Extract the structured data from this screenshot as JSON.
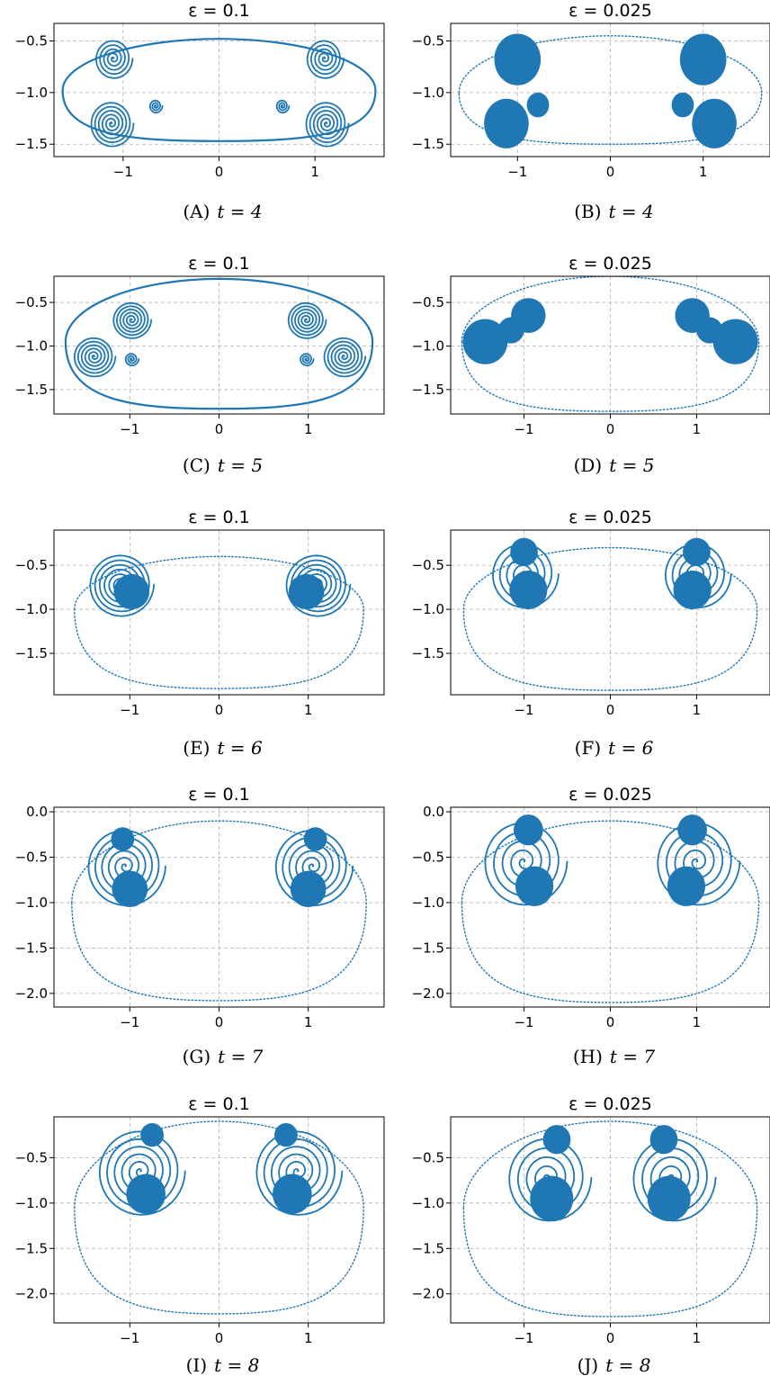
{
  "colors": {
    "series": "#1f77b4",
    "grid": "#b0b0b0",
    "axes": "#000000"
  },
  "chart_data": [
    {
      "type": "scatter",
      "title": "ε = 0.1",
      "caption_prefix": "(A)",
      "caption_text": "t = 4",
      "xlim": [
        -1.72,
        1.72
      ],
      "ylim": [
        -1.62,
        -0.33
      ],
      "xticks": [
        -1,
        0,
        1
      ],
      "xticklabels": [
        "−1",
        "0",
        "1"
      ],
      "yticks": [
        -0.5,
        -1.0,
        -1.5
      ],
      "yticklabels": [
        "−0.5",
        "−1.0",
        "−1.5"
      ],
      "grid": true,
      "legend": "none",
      "curves": [
        {
          "name": "",
          "kind": "loop",
          "cx": 0,
          "cy": -0.98,
          "rx": 1.63,
          "ry": 0.5,
          "sag": -1.47
        },
        {
          "kind": "spiral",
          "cx": -1.1,
          "cy": -0.67,
          "r": 0.2,
          "turns": 5
        },
        {
          "kind": "spiral",
          "cx": 1.1,
          "cy": -0.67,
          "r": 0.2,
          "turns": 5
        },
        {
          "kind": "spiral",
          "cx": -1.12,
          "cy": -1.3,
          "r": 0.23,
          "turns": 6
        },
        {
          "kind": "spiral",
          "cx": 1.12,
          "cy": -1.3,
          "r": 0.23,
          "turns": 6
        },
        {
          "kind": "spiral",
          "cx": -0.66,
          "cy": -1.13,
          "r": 0.07,
          "turns": 3
        },
        {
          "kind": "spiral",
          "cx": 0.66,
          "cy": -1.13,
          "r": 0.07,
          "turns": 3
        }
      ]
    },
    {
      "type": "scatter",
      "title": "ε = 0.025",
      "caption_prefix": "(B)",
      "caption_text": "t = 4",
      "xlim": [
        -1.72,
        1.72
      ],
      "ylim": [
        -1.62,
        -0.33
      ],
      "xticks": [
        -1,
        0,
        1
      ],
      "xticklabels": [
        "−1",
        "0",
        "1"
      ],
      "yticks": [
        -0.5,
        -1.0,
        -1.5
      ],
      "yticklabels": [
        "−0.5",
        "−1.0",
        "−1.5"
      ],
      "grid": true,
      "legend": "none",
      "curves": [
        {
          "kind": "loop-dotted",
          "cx": 0,
          "cy": -1.0,
          "rx": 1.63,
          "ry": 0.55,
          "sag": -1.5
        },
        {
          "kind": "blob",
          "cx": -1.0,
          "cy": -0.68,
          "r": 0.25
        },
        {
          "kind": "blob",
          "cx": 1.0,
          "cy": -0.68,
          "r": 0.25
        },
        {
          "kind": "blob",
          "cx": -1.12,
          "cy": -1.3,
          "r": 0.24
        },
        {
          "kind": "blob",
          "cx": 1.12,
          "cy": -1.3,
          "r": 0.24
        },
        {
          "kind": "blob",
          "cx": -0.78,
          "cy": -1.12,
          "r": 0.12
        },
        {
          "kind": "blob",
          "cx": 0.78,
          "cy": -1.12,
          "r": 0.12
        }
      ]
    },
    {
      "type": "scatter",
      "title": "ε = 0.1",
      "caption_prefix": "(C)",
      "caption_text": "t = 5",
      "xlim": [
        -1.85,
        1.85
      ],
      "ylim": [
        -1.78,
        -0.2
      ],
      "xticks": [
        -1,
        0,
        1
      ],
      "xticklabels": [
        "−1",
        "0",
        "1"
      ],
      "yticks": [
        -0.5,
        -1.0,
        -1.5
      ],
      "yticklabels": [
        "−0.5",
        "−1.0",
        "−1.5"
      ],
      "grid": true,
      "legend": "none",
      "curves": [
        {
          "kind": "loop",
          "cx": 0,
          "cy": -0.95,
          "rx": 1.72,
          "ry": 0.72,
          "sag": -1.72
        },
        {
          "kind": "spiral",
          "cx": -0.98,
          "cy": -0.7,
          "r": 0.22,
          "turns": 6
        },
        {
          "kind": "spiral",
          "cx": 0.98,
          "cy": -0.7,
          "r": 0.22,
          "turns": 6
        },
        {
          "kind": "spiral",
          "cx": -1.4,
          "cy": -1.12,
          "r": 0.24,
          "turns": 6
        },
        {
          "kind": "spiral",
          "cx": 1.4,
          "cy": -1.12,
          "r": 0.24,
          "turns": 6
        },
        {
          "kind": "spiral",
          "cx": -0.98,
          "cy": -1.15,
          "r": 0.08,
          "turns": 3
        },
        {
          "kind": "spiral",
          "cx": 0.98,
          "cy": -1.15,
          "r": 0.08,
          "turns": 3
        }
      ]
    },
    {
      "type": "scatter",
      "title": "ε = 0.025",
      "caption_prefix": "(D)",
      "caption_text": "t = 5",
      "xlim": [
        -1.85,
        1.85
      ],
      "ylim": [
        -1.78,
        -0.2
      ],
      "xticks": [
        -1,
        0,
        1
      ],
      "xticklabels": [
        "−1",
        "0",
        "1"
      ],
      "yticks": [
        -0.5,
        -1.0,
        -1.5
      ],
      "yticklabels": [
        "−0.5",
        "−1.0",
        "−1.5"
      ],
      "grid": true,
      "legend": "none",
      "curves": [
        {
          "kind": "loop-dotted",
          "cx": 0,
          "cy": -0.95,
          "rx": 1.72,
          "ry": 0.75,
          "sag": -1.75
        },
        {
          "kind": "blob",
          "cx": -0.95,
          "cy": -0.65,
          "r": 0.2
        },
        {
          "kind": "blob",
          "cx": 0.95,
          "cy": -0.65,
          "r": 0.2
        },
        {
          "kind": "blob",
          "cx": -1.45,
          "cy": -0.95,
          "r": 0.26
        },
        {
          "kind": "blob",
          "cx": 1.45,
          "cy": -0.95,
          "r": 0.26
        },
        {
          "kind": "blob",
          "cx": -1.15,
          "cy": -0.82,
          "r": 0.15
        },
        {
          "kind": "blob",
          "cx": 1.15,
          "cy": -0.82,
          "r": 0.15
        }
      ]
    },
    {
      "type": "scatter",
      "title": "ε = 0.1",
      "caption_prefix": "(E)",
      "caption_text": "t = 6",
      "xlim": [
        -1.85,
        1.85
      ],
      "ylim": [
        -1.97,
        -0.1
      ],
      "xticks": [
        -1,
        0,
        1
      ],
      "xticklabels": [
        "−1",
        "0",
        "1"
      ],
      "yticks": [
        -0.5,
        -1.0,
        -1.5
      ],
      "yticklabels": [
        "−0.5",
        "−1.0",
        "−1.5"
      ],
      "grid": true,
      "legend": "none",
      "curves": [
        {
          "kind": "loop-dotted",
          "cx": 0,
          "cy": -1.0,
          "rx": 1.62,
          "ry": 0.6,
          "sag": -1.9
        },
        {
          "kind": "spiral",
          "cx": -1.1,
          "cy": -0.72,
          "r": 0.37,
          "turns": 7
        },
        {
          "kind": "spiral",
          "cx": 1.1,
          "cy": -0.72,
          "r": 0.37,
          "turns": 7
        },
        {
          "kind": "blob",
          "cx": -0.98,
          "cy": -0.8,
          "r": 0.2
        },
        {
          "kind": "blob",
          "cx": 0.98,
          "cy": -0.8,
          "r": 0.2
        }
      ]
    },
    {
      "type": "scatter",
      "title": "ε = 0.025",
      "caption_prefix": "(F)",
      "caption_text": "t = 6",
      "xlim": [
        -1.85,
        1.85
      ],
      "ylim": [
        -1.97,
        -0.1
      ],
      "xticks": [
        -1,
        0,
        1
      ],
      "xticklabels": [
        "−1",
        "0",
        "1"
      ],
      "yticks": [
        -0.5,
        -1.0,
        -1.5
      ],
      "yticklabels": [
        "−0.5",
        "−1.0",
        "−1.5"
      ],
      "grid": true,
      "legend": "none",
      "curves": [
        {
          "kind": "loop-dotted",
          "cx": 0,
          "cy": -1.0,
          "rx": 1.7,
          "ry": 0.7,
          "sag": -1.92
        },
        {
          "kind": "blob",
          "cx": -1.0,
          "cy": -0.35,
          "r": 0.16
        },
        {
          "kind": "blob",
          "cx": 1.0,
          "cy": -0.35,
          "r": 0.16
        },
        {
          "kind": "blob",
          "cx": -0.95,
          "cy": -0.78,
          "r": 0.22
        },
        {
          "kind": "blob",
          "cx": 0.95,
          "cy": -0.78,
          "r": 0.22
        },
        {
          "kind": "spiral",
          "cx": -1.0,
          "cy": -0.6,
          "r": 0.4,
          "turns": 5
        },
        {
          "kind": "spiral",
          "cx": 1.0,
          "cy": -0.6,
          "r": 0.4,
          "turns": 5
        }
      ]
    },
    {
      "type": "scatter",
      "title": "ε = 0.1",
      "caption_prefix": "(G)",
      "caption_text": "t = 7",
      "xlim": [
        -1.85,
        1.85
      ],
      "ylim": [
        -2.15,
        0.05
      ],
      "xticks": [
        -1,
        0,
        1
      ],
      "xticklabels": [
        "−1",
        "0",
        "1"
      ],
      "yticks": [
        0.0,
        -0.5,
        -1.0,
        -1.5,
        -2.0
      ],
      "yticklabels": [
        "0.0",
        "−0.5",
        "−1.0",
        "−1.5",
        "−2.0"
      ],
      "grid": true,
      "legend": "none",
      "curves": [
        {
          "kind": "loop-dotted",
          "cx": 0,
          "cy": -1.0,
          "rx": 1.65,
          "ry": 0.9,
          "sag": -2.08
        },
        {
          "kind": "blob",
          "cx": -1.08,
          "cy": -0.3,
          "r": 0.13
        },
        {
          "kind": "blob",
          "cx": 1.08,
          "cy": -0.3,
          "r": 0.13
        },
        {
          "kind": "blob",
          "cx": -1.0,
          "cy": -0.85,
          "r": 0.2
        },
        {
          "kind": "blob",
          "cx": 1.0,
          "cy": -0.85,
          "r": 0.2
        },
        {
          "kind": "spiral",
          "cx": -1.05,
          "cy": -0.6,
          "r": 0.45,
          "turns": 6
        },
        {
          "kind": "spiral",
          "cx": 1.05,
          "cy": -0.6,
          "r": 0.45,
          "turns": 6
        }
      ]
    },
    {
      "type": "scatter",
      "title": "ε = 0.025",
      "caption_prefix": "(H)",
      "caption_text": "t = 7",
      "xlim": [
        -1.85,
        1.85
      ],
      "ylim": [
        -2.15,
        0.05
      ],
      "xticks": [
        -1,
        0,
        1
      ],
      "xticklabels": [
        "−1",
        "0",
        "1"
      ],
      "yticks": [
        0.0,
        -0.5,
        -1.0,
        -1.5,
        -2.0
      ],
      "yticklabels": [
        "0.0",
        "−0.5",
        "−1.0",
        "−1.5",
        "−2.0"
      ],
      "grid": true,
      "legend": "none",
      "curves": [
        {
          "kind": "loop-dotted",
          "cx": 0,
          "cy": -1.0,
          "rx": 1.72,
          "ry": 0.9,
          "sag": -2.1
        },
        {
          "kind": "blob",
          "cx": -0.95,
          "cy": -0.2,
          "r": 0.17
        },
        {
          "kind": "blob",
          "cx": 0.95,
          "cy": -0.2,
          "r": 0.17
        },
        {
          "kind": "blob",
          "cx": -0.88,
          "cy": -0.82,
          "r": 0.22
        },
        {
          "kind": "blob",
          "cx": 0.88,
          "cy": -0.82,
          "r": 0.22
        },
        {
          "kind": "spiral",
          "cx": -1.0,
          "cy": -0.55,
          "r": 0.5,
          "turns": 5
        },
        {
          "kind": "spiral",
          "cx": 1.0,
          "cy": -0.55,
          "r": 0.5,
          "turns": 5
        }
      ]
    },
    {
      "type": "scatter",
      "title": "ε = 0.1",
      "caption_prefix": "(I)",
      "caption_text": "t = 8",
      "xlim": [
        -1.85,
        1.85
      ],
      "ylim": [
        -2.32,
        -0.05
      ],
      "xticks": [
        -1,
        0,
        1
      ],
      "xticklabels": [
        "−1",
        "0",
        "1"
      ],
      "yticks": [
        -0.5,
        -1.0,
        -1.5,
        -2.0
      ],
      "yticklabels": [
        "−0.5",
        "−1.0",
        "−1.5",
        "−2.0"
      ],
      "grid": true,
      "legend": "none",
      "curves": [
        {
          "kind": "loop-dotted",
          "cx": 0,
          "cy": -1.05,
          "rx": 1.62,
          "ry": 0.95,
          "sag": -2.22
        },
        {
          "kind": "blob",
          "cx": -0.75,
          "cy": -0.25,
          "r": 0.13
        },
        {
          "kind": "blob",
          "cx": 0.75,
          "cy": -0.25,
          "r": 0.13
        },
        {
          "kind": "blob",
          "cx": -0.82,
          "cy": -0.9,
          "r": 0.22
        },
        {
          "kind": "blob",
          "cx": 0.82,
          "cy": -0.9,
          "r": 0.22
        },
        {
          "kind": "spiral",
          "cx": -0.88,
          "cy": -0.65,
          "r": 0.5,
          "turns": 6
        },
        {
          "kind": "spiral",
          "cx": 0.88,
          "cy": -0.65,
          "r": 0.5,
          "turns": 6
        }
      ]
    },
    {
      "type": "scatter",
      "title": "ε = 0.025",
      "caption_prefix": "(J)",
      "caption_text": "t = 8",
      "xlim": [
        -1.85,
        1.85
      ],
      "ylim": [
        -2.32,
        -0.05
      ],
      "xticks": [
        -1,
        0,
        1
      ],
      "xticklabels": [
        "−1",
        "0",
        "1"
      ],
      "yticks": [
        -0.5,
        -1.0,
        -1.5,
        -2.0
      ],
      "yticklabels": [
        "−0.5",
        "−1.0",
        "−1.5",
        "−2.0"
      ],
      "grid": true,
      "legend": "none",
      "curves": [
        {
          "kind": "loop-dotted",
          "cx": 0,
          "cy": -1.05,
          "rx": 1.7,
          "ry": 0.95,
          "sag": -2.25
        },
        {
          "kind": "blob",
          "cx": -0.62,
          "cy": -0.3,
          "r": 0.16
        },
        {
          "kind": "blob",
          "cx": 0.62,
          "cy": -0.3,
          "r": 0.16
        },
        {
          "kind": "blob",
          "cx": -0.68,
          "cy": -0.95,
          "r": 0.25
        },
        {
          "kind": "blob",
          "cx": 0.68,
          "cy": -0.95,
          "r": 0.25
        },
        {
          "kind": "spiral",
          "cx": -0.72,
          "cy": -0.72,
          "r": 0.5,
          "turns": 5
        },
        {
          "kind": "spiral",
          "cx": 0.72,
          "cy": -0.72,
          "r": 0.5,
          "turns": 5
        }
      ]
    }
  ]
}
